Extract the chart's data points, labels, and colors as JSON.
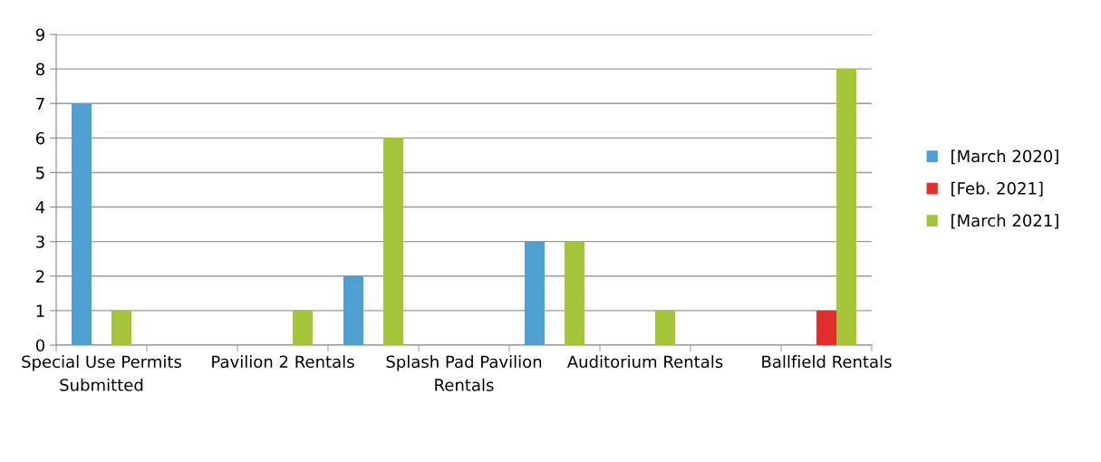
{
  "chart_data": {
    "type": "bar",
    "categories": [
      "Special Use Permits Submitted",
      null,
      "Pavilion 2 Rentals",
      null,
      "Splash Pad Pavilion Rentals",
      null,
      "Auditorium Rentals",
      null,
      "Ballfield Rentals"
    ],
    "series": [
      {
        "name": "[March 2020]",
        "color": "#4f9fd0",
        "values": [
          7,
          null,
          null,
          2,
          null,
          3,
          null,
          null,
          null
        ]
      },
      {
        "name": "[Feb. 2021]",
        "color": "#e0302c",
        "values": [
          null,
          null,
          null,
          null,
          null,
          null,
          null,
          null,
          1
        ]
      },
      {
        "name": "[March 2021]",
        "color": "#a5c43a",
        "values": [
          1,
          null,
          1,
          6,
          null,
          3,
          1,
          null,
          8
        ]
      }
    ],
    "ylim": [
      0,
      9
    ],
    "yticks": [
      0,
      1,
      2,
      3,
      4,
      5,
      6,
      7,
      8,
      9
    ],
    "grid": "y",
    "legend": "right"
  }
}
